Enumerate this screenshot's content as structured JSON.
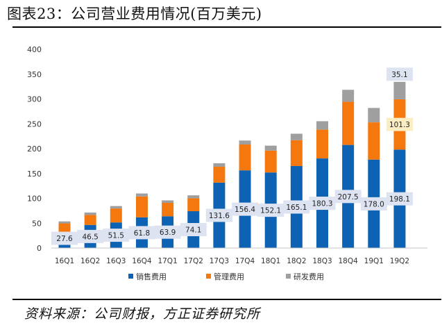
{
  "title": "图表23：公司营业费用情况(百万美元)",
  "source": "资料来源：公司财报，方正证券研究所",
  "colors": {
    "sales": "#0d62b3",
    "admin": "#f5780f",
    "rnd": "#9f9f9f",
    "label_bg": "#dde3f1",
    "highlight_bg": "#fbeec2"
  },
  "chart_data": {
    "type": "bar",
    "stacked": true,
    "title": "公司营业费用情况(百万美元)",
    "categories": [
      "16Q1",
      "16Q2",
      "16Q3",
      "16Q4",
      "17Q1",
      "17Q2",
      "17Q3",
      "17Q4",
      "18Q1",
      "18Q2",
      "18Q3",
      "18Q4",
      "19Q1",
      "19Q2"
    ],
    "series": [
      {
        "name": "销售费用",
        "values": [
          27.6,
          46.5,
          51.5,
          61.8,
          63.9,
          74.1,
          131.6,
          156.4,
          152.1,
          165.1,
          180.3,
          207.5,
          178.0,
          198.1
        ]
      },
      {
        "name": "管理费用",
        "values": [
          22,
          20,
          28,
          42,
          27,
          26,
          32,
          52,
          44,
          52,
          58,
          87,
          75,
          101.3
        ]
      },
      {
        "name": "研发费用",
        "values": [
          4,
          5,
          5,
          6,
          5,
          6,
          7,
          8,
          10,
          13,
          17,
          24,
          29,
          35.1
        ]
      }
    ],
    "sales_labels": [
      "27.6",
      "46.5",
      "51.5",
      "61.8",
      "63.9",
      "74.1",
      "131.6",
      "156.4",
      "152.1",
      "165.1",
      "180.3",
      "207.5",
      "178.0",
      "198.1"
    ],
    "extra_labels": [
      {
        "series": 1,
        "index": 13,
        "text": "101.3"
      },
      {
        "series": 2,
        "index": 13,
        "text": "35.1"
      }
    ],
    "ylim": [
      0,
      400
    ],
    "yticks": [
      "0",
      "50",
      "100",
      "150",
      "200",
      "250",
      "300",
      "350",
      "400"
    ],
    "legend_position": "bottom",
    "grid": false
  }
}
